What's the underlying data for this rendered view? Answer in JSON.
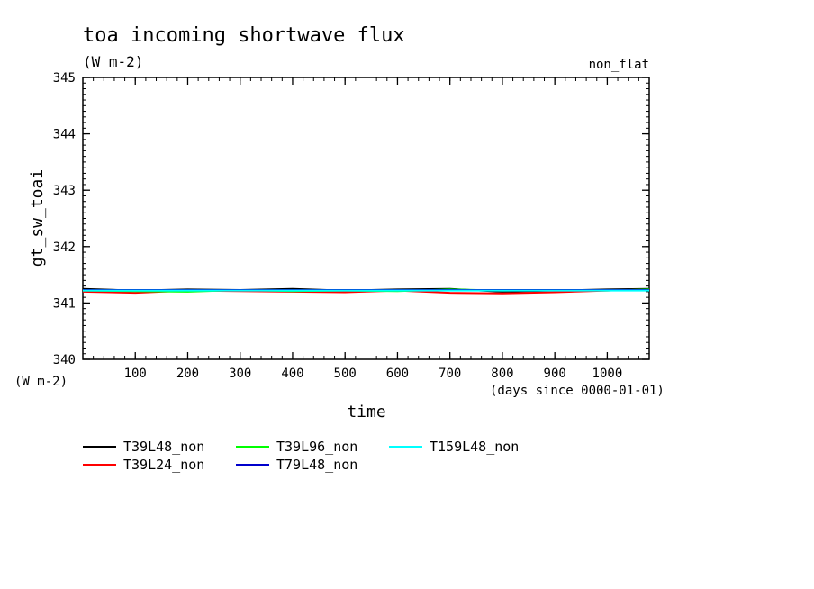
{
  "chart_data": {
    "type": "line",
    "title": "toa incoming shortwave flux",
    "units": "(W m-2)",
    "corner_label": "non_flat",
    "ylabel": "gt_sw_toai",
    "xlabel": "time",
    "x_units": "(days since 0000-01-01)",
    "y_units_bottom": "(W m-2)",
    "xlim": [
      0,
      1080
    ],
    "ylim": [
      340,
      345
    ],
    "x_ticks": [
      100,
      200,
      300,
      400,
      500,
      600,
      700,
      800,
      900,
      1000
    ],
    "y_ticks": [
      340,
      341,
      342,
      343,
      344,
      345
    ],
    "series": [
      {
        "name": "T39L48_non",
        "color": "#000000",
        "x": [
          0,
          100,
          200,
          300,
          400,
          500,
          600,
          700,
          800,
          900,
          1000,
          1080
        ],
        "values": [
          341.25,
          341.22,
          341.24,
          341.23,
          341.25,
          341.22,
          341.24,
          341.25,
          341.2,
          341.22,
          341.24,
          341.25
        ]
      },
      {
        "name": "T39L24_non",
        "color": "#ff0000",
        "x": [
          0,
          100,
          200,
          300,
          400,
          500,
          600,
          700,
          800,
          900,
          1000,
          1080
        ],
        "values": [
          341.2,
          341.18,
          341.22,
          341.21,
          341.2,
          341.19,
          341.22,
          341.18,
          341.17,
          341.19,
          341.22,
          341.24
        ]
      },
      {
        "name": "T39L96_non",
        "color": "#00ff00",
        "x": [
          0,
          100,
          200,
          300,
          400,
          500,
          600,
          700,
          800,
          900,
          1000,
          1080
        ],
        "values": [
          341.22,
          341.21,
          341.2,
          341.23,
          341.21,
          341.22,
          341.21,
          341.24,
          341.22,
          341.23,
          341.22,
          341.24
        ]
      },
      {
        "name": "T79L48_non",
        "color": "#0000cc",
        "x": [
          0,
          100,
          200,
          300,
          400,
          500,
          600,
          700,
          800,
          900,
          1000,
          1080
        ],
        "values": [
          341.23,
          341.23,
          341.23,
          341.23,
          341.23,
          341.23,
          341.23,
          341.23,
          341.23,
          341.23,
          341.23,
          341.23
        ]
      },
      {
        "name": "T159L48_non",
        "color": "#00ffff",
        "x": [
          0,
          100,
          200,
          300,
          400,
          500,
          600,
          700,
          800,
          900,
          1000,
          1080
        ],
        "values": [
          341.22,
          341.22,
          341.22,
          341.22,
          341.22,
          341.22,
          341.22,
          341.22,
          341.22,
          341.22,
          341.22,
          341.22
        ]
      }
    ],
    "legend_position": "bottom-left"
  }
}
